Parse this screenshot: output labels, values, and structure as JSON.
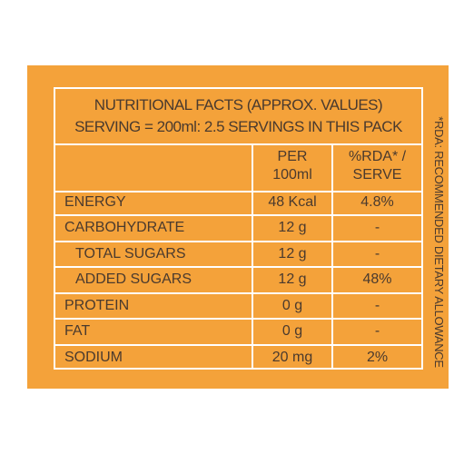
{
  "title": {
    "line1": "NUTRITIONAL FACTS  (APPROX. VALUES)",
    "line2": "SERVING = 200ml: 2.5 SERVINGS IN THIS PACK"
  },
  "headers": {
    "per_line1": "PER",
    "per_line2": "100ml",
    "rda_line1": "%RDA* /",
    "rda_line2": "SERVE"
  },
  "rows": [
    {
      "name": "ENERGY",
      "per": "48 Kcal",
      "rda": "4.8%"
    },
    {
      "name": "CARBOHYDRATE",
      "per": "12 g",
      "rda": "-"
    },
    {
      "name": "TOTAL SUGARS",
      "per": "12 g",
      "rda": "-"
    },
    {
      "name": "ADDED SUGARS",
      "per": "12 g",
      "rda": "48%"
    },
    {
      "name": "PROTEIN",
      "per": "0 g",
      "rda": "-"
    },
    {
      "name": "FAT",
      "per": "0 g",
      "rda": "-"
    },
    {
      "name": "SODIUM",
      "per": "20 mg",
      "rda": "2%"
    }
  ],
  "footnote": "*RDA: RECOMMENDED DIETARY ALLOWANCE",
  "colors": {
    "panel": "#F4A23A",
    "text": "#4a3a2e",
    "lines": "#ffffff"
  }
}
